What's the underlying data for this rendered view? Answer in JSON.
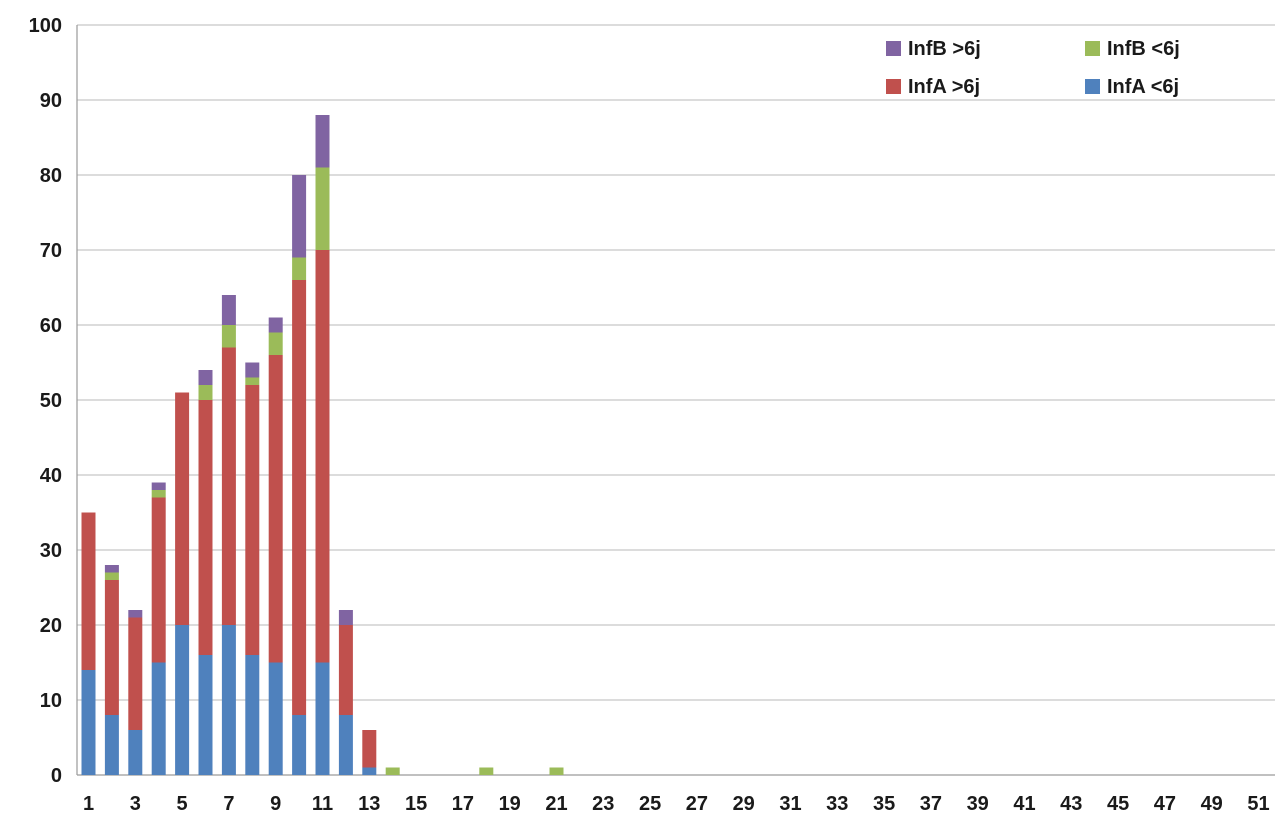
{
  "chart_data": {
    "type": "bar",
    "stacked": true,
    "title": "",
    "xlabel": "",
    "ylabel": "",
    "ylim": [
      0,
      100
    ],
    "yticks": [
      0,
      10,
      20,
      30,
      40,
      50,
      60,
      70,
      80,
      90,
      100
    ],
    "x": [
      1,
      2,
      3,
      4,
      5,
      6,
      7,
      8,
      9,
      10,
      11,
      12,
      13,
      14,
      15,
      16,
      17,
      18,
      19,
      20,
      21,
      22,
      23,
      24,
      25,
      26,
      27,
      28,
      29,
      30,
      31,
      32,
      33,
      34,
      35,
      36,
      37,
      38,
      39,
      40,
      41,
      42,
      43,
      44,
      45,
      46,
      47,
      48,
      49,
      50,
      51
    ],
    "xtick_labels": [
      "1",
      "3",
      "5",
      "7",
      "9",
      "11",
      "13",
      "15",
      "17",
      "19",
      "21",
      "23",
      "25",
      "27",
      "29",
      "31",
      "33",
      "35",
      "37",
      "39",
      "41",
      "43",
      "45",
      "47",
      "49",
      "51"
    ],
    "grid": true,
    "legend_position": "top-right",
    "series": [
      {
        "name": "InfA <6j",
        "color": "#4f81bd",
        "values": [
          14,
          8,
          6,
          15,
          20,
          16,
          20,
          16,
          15,
          8,
          15,
          8,
          1,
          0,
          0,
          0,
          0,
          0,
          0,
          0,
          0,
          0,
          0,
          0,
          0,
          0,
          0,
          0,
          0,
          0,
          0,
          0,
          0,
          0,
          0,
          0,
          0,
          0,
          0,
          0,
          0,
          0,
          0,
          0,
          0,
          0,
          0,
          0,
          0,
          0,
          0
        ]
      },
      {
        "name": "InfA >6j",
        "color": "#c0504d",
        "values": [
          21,
          18,
          15,
          22,
          31,
          34,
          37,
          36,
          41,
          58,
          55,
          12,
          5,
          0,
          0,
          0,
          0,
          0,
          0,
          0,
          0,
          0,
          0,
          0,
          0,
          0,
          0,
          0,
          0,
          0,
          0,
          0,
          0,
          0,
          0,
          0,
          0,
          0,
          0,
          0,
          0,
          0,
          0,
          0,
          0,
          0,
          0,
          0,
          0,
          0,
          0
        ]
      },
      {
        "name": "InfB <6j",
        "color": "#9bbb59",
        "values": [
          0,
          1,
          0,
          1,
          0,
          2,
          3,
          1,
          3,
          3,
          11,
          0,
          0,
          1,
          0,
          0,
          0,
          1,
          0,
          0,
          1,
          0,
          0,
          0,
          0,
          0,
          0,
          0,
          0,
          0,
          0,
          0,
          0,
          0,
          0,
          0,
          0,
          0,
          0,
          0,
          0,
          0,
          0,
          0,
          0,
          0,
          0,
          0,
          0,
          0,
          0
        ]
      },
      {
        "name": "InfB >6j",
        "color": "#8064a2",
        "values": [
          0,
          1,
          1,
          1,
          0,
          2,
          4,
          2,
          2,
          11,
          7,
          2,
          0,
          0,
          0,
          0,
          0,
          0,
          0,
          0,
          0,
          0,
          0,
          0,
          0,
          0,
          0,
          0,
          0,
          0,
          0,
          0,
          0,
          0,
          0,
          0,
          0,
          0,
          0,
          0,
          0,
          0,
          0,
          0,
          0,
          0,
          0,
          0,
          0,
          0,
          0
        ]
      }
    ],
    "legend": [
      {
        "label": "InfB >6j",
        "color": "#8064a2"
      },
      {
        "label": "InfB <6j",
        "color": "#9bbb59"
      },
      {
        "label": "InfA >6j",
        "color": "#c0504d"
      },
      {
        "label": "InfA <6j",
        "color": "#4f81bd"
      }
    ]
  }
}
